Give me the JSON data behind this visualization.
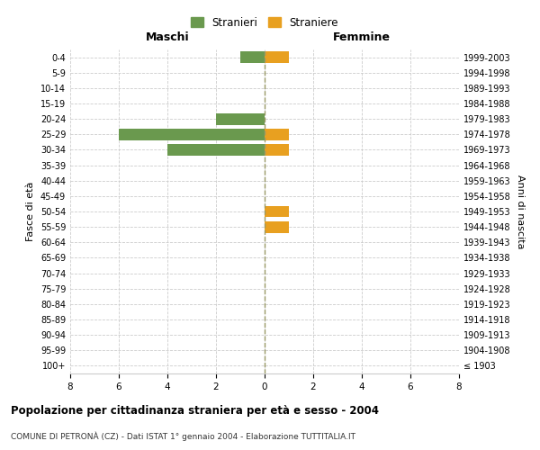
{
  "age_groups": [
    "100+",
    "95-99",
    "90-94",
    "85-89",
    "80-84",
    "75-79",
    "70-74",
    "65-69",
    "60-64",
    "55-59",
    "50-54",
    "45-49",
    "40-44",
    "35-39",
    "30-34",
    "25-29",
    "20-24",
    "15-19",
    "10-14",
    "5-9",
    "0-4"
  ],
  "birth_years": [
    "≤ 1903",
    "1904-1908",
    "1909-1913",
    "1914-1918",
    "1919-1923",
    "1924-1928",
    "1929-1933",
    "1934-1938",
    "1939-1943",
    "1944-1948",
    "1949-1953",
    "1954-1958",
    "1959-1963",
    "1964-1968",
    "1969-1973",
    "1974-1978",
    "1979-1983",
    "1984-1988",
    "1989-1993",
    "1994-1998",
    "1999-2003"
  ],
  "males": [
    0,
    0,
    0,
    0,
    0,
    0,
    0,
    0,
    0,
    0,
    0,
    0,
    0,
    0,
    4,
    6,
    2,
    0,
    0,
    0,
    1
  ],
  "females": [
    0,
    0,
    0,
    0,
    0,
    0,
    0,
    0,
    0,
    1,
    1,
    0,
    0,
    0,
    1,
    1,
    0,
    0,
    0,
    0,
    1
  ],
  "male_color": "#6a994e",
  "female_color": "#e8a020",
  "xlim": 8,
  "title": "Popolazione per cittadinanza straniera per età e sesso - 2004",
  "subtitle": "COMUNE DI PETRONÀ (CZ) - Dati ISTAT 1° gennaio 2004 - Elaborazione TUTTITALIA.IT",
  "ylabel_left": "Fasce di età",
  "ylabel_right": "Anni di nascita",
  "legend_male": "Stranieri",
  "legend_female": "Straniere",
  "maschi_label": "Maschi",
  "femmine_label": "Femmine",
  "bg_color": "#ffffff",
  "grid_color": "#cccccc",
  "bar_height": 0.75
}
